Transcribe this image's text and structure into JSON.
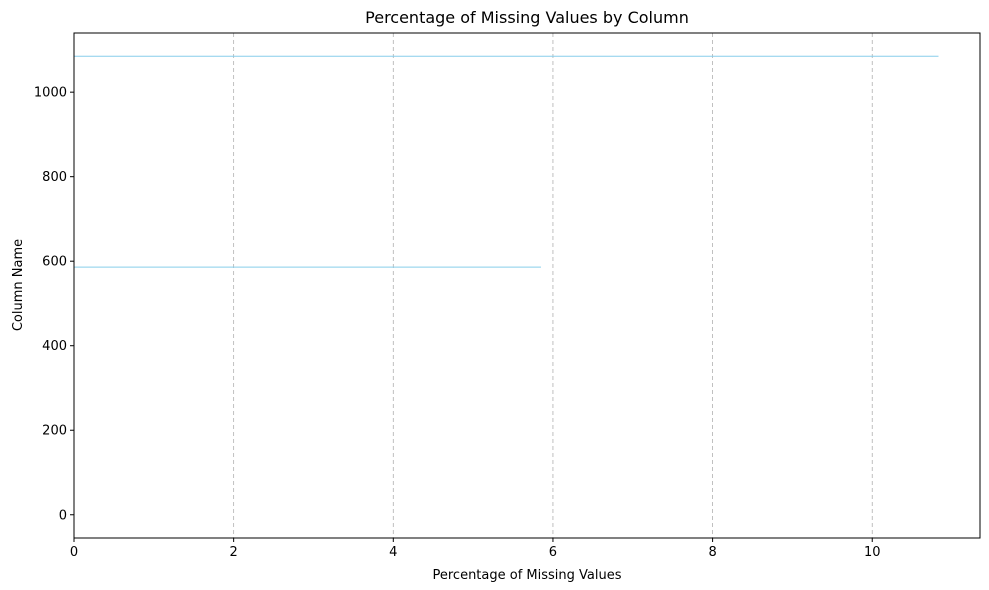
{
  "chart_data": {
    "type": "bar",
    "orientation": "horizontal",
    "title": "Percentage of Missing Values by Column",
    "xlabel": "Percentage of Missing Values",
    "ylabel": "Column Name",
    "xlim": [
      0,
      11.35
    ],
    "ylim": [
      -55,
      1140
    ],
    "xticks": [
      0,
      2,
      4,
      6,
      8,
      10
    ],
    "yticks": [
      0,
      200,
      400,
      600,
      800,
      1000
    ],
    "grid": "x-dashed",
    "bar_color": "#87ceeb",
    "bars": [
      {
        "y": 586,
        "value": 5.85
      },
      {
        "y": 1085,
        "value": 10.83
      }
    ]
  }
}
